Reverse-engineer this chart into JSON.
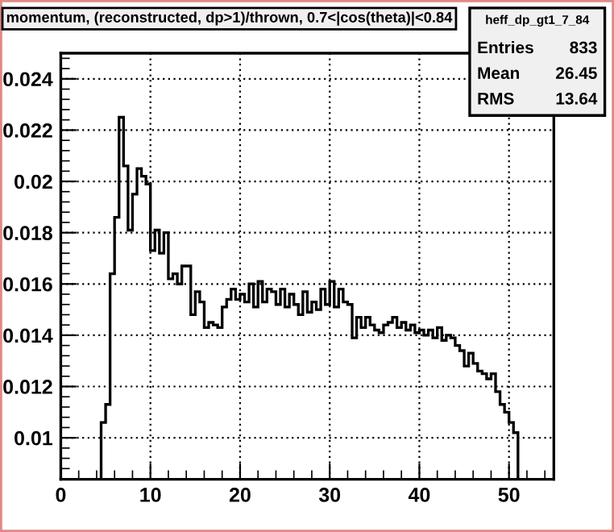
{
  "chart_data": {
    "type": "histogram",
    "title": "momentum, (reconstructed, dp>1)/thrown, 0.7<|cos(theta)|<0.84",
    "bins": [
      4.5,
      5,
      5.5,
      6,
      6.5,
      7,
      7.5,
      8,
      8.5,
      9,
      9.5,
      10,
      10.5,
      11,
      11.5,
      12,
      12.5,
      13,
      13.5,
      14,
      14.5,
      15,
      15.5,
      16,
      16.5,
      17,
      17.5,
      18,
      18.5,
      19,
      19.5,
      20,
      20.5,
      21,
      21.5,
      22,
      22.5,
      23,
      23.5,
      24,
      24.5,
      25,
      25.5,
      26,
      26.5,
      27,
      27.5,
      28,
      28.5,
      29,
      29.5,
      30,
      30.5,
      31,
      31.5,
      32,
      32.5,
      33,
      33.5,
      34,
      34.5,
      35,
      35.5,
      36,
      36.5,
      37,
      37.5,
      38,
      38.5,
      39,
      39.5,
      40,
      40.5,
      41,
      41.5,
      42,
      42.5,
      43,
      43.5,
      44,
      44.5,
      45,
      45.5,
      46,
      46.5,
      47,
      47.5,
      48,
      48.5,
      49,
      49.5,
      50,
      50.5,
      51
    ],
    "values": [
      0.0106,
      0.0113,
      0.0164,
      0.0186,
      0.0225,
      0.0206,
      0.0181,
      0.0195,
      0.0205,
      0.0202,
      0.0199,
      0.0173,
      0.0181,
      0.0172,
      0.018,
      0.0162,
      0.0164,
      0.016,
      0.0167,
      0.0167,
      0.0148,
      0.0157,
      0.0153,
      0.0143,
      0.0145,
      0.0144,
      0.0143,
      0.0151,
      0.0154,
      0.0158,
      0.0154,
      0.0156,
      0.0153,
      0.016,
      0.0151,
      0.0161,
      0.0153,
      0.0158,
      0.0157,
      0.0152,
      0.0158,
      0.0151,
      0.0156,
      0.0152,
      0.0148,
      0.0157,
      0.0149,
      0.0153,
      0.015,
      0.0158,
      0.0152,
      0.0161,
      0.0151,
      0.0158,
      0.0153,
      0.0152,
      0.0139,
      0.0147,
      0.0143,
      0.0147,
      0.0144,
      0.0142,
      0.0141,
      0.0144,
      0.0145,
      0.0147,
      0.0143,
      0.0145,
      0.0142,
      0.0144,
      0.0141,
      0.0142,
      0.014,
      0.0142,
      0.0139,
      0.0143,
      0.0138,
      0.014,
      0.0139,
      0.0136,
      0.0134,
      0.0128,
      0.0133,
      0.0129,
      0.0126,
      0.0125,
      0.0123,
      0.0125,
      0.0118,
      0.0113,
      0.011,
      0.0106,
      0.0102
    ],
    "color": "#000000",
    "xlim": [
      0,
      55
    ],
    "ylim": [
      0.00838,
      0.025
    ],
    "xticks": [
      0,
      10,
      20,
      30,
      40,
      50
    ],
    "yticks": [
      0.01,
      0.012,
      0.014,
      0.016,
      0.018,
      0.02,
      0.022,
      0.024
    ],
    "grid": true,
    "annotations": [
      "heff_dp_gt1_7_84",
      "Entries 833",
      "Mean 26.45",
      "RMS 13.64"
    ]
  }
}
